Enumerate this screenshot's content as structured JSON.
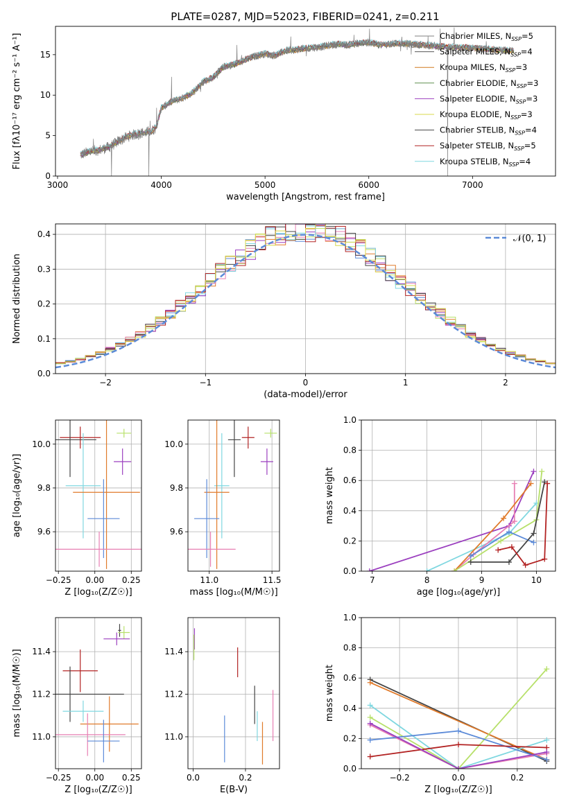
{
  "figure": {
    "title": "PLATE=0287, MJD=52023, FIBERID=0241, z=0.211"
  },
  "colors": {
    "chabrier_miles": "#7f7f7f",
    "salpeter_miles": "#555555",
    "kroupa_miles": "#d0781f",
    "chabrier_elodie": "#5f8f4f",
    "salpeter_elodie": "#9b3fbf",
    "kroupa_elodie": "#d8d84a",
    "chabrier_stelib": "#444444",
    "salpeter_stelib": "#b22222",
    "kroupa_stelib": "#7fd7e0",
    "gaussian": "#5b8ad8",
    "pink": "#e77fb3",
    "blue": "#5b8ad8",
    "orange": "#e07a2a",
    "lime": "#b7e06a"
  },
  "chart_data": [
    {
      "id": "spectrum",
      "type": "line",
      "title": "PLATE=0287, MJD=52023, FIBERID=0241, z=0.211",
      "xlabel": "wavelength [Angstrom, rest frame]",
      "ylabel": "Flux [fλ10⁻¹⁷ erg cm⁻² s⁻¹ A⁻¹]",
      "xlim": [
        2980,
        7800
      ],
      "ylim": [
        0,
        18.5
      ],
      "xticks": [
        3000,
        4000,
        5000,
        6000,
        7000
      ],
      "yticks": [
        0,
        5,
        10,
        15
      ],
      "legend": {
        "placement": "right",
        "entries": [
          "Chabrier MILES, N_SSP=5",
          "Salpeter MILES, N_SSP=4",
          "Kroupa MILES, N_SSP=3",
          "Chabrier ELODIE, N_SSP=3",
          "Salpeter ELODIE, N_SSP=3",
          "Kroupa ELODIE, N_SSP=3",
          "Chabrier STELIB, N_SSP=4",
          "Salpeter STELIB, N_SSP=5",
          "Kroupa STELIB, N_SSP=4"
        ],
        "color_keys": [
          "chabrier_miles",
          "salpeter_miles",
          "kroupa_miles",
          "chabrier_elodie",
          "salpeter_elodie",
          "kroupa_elodie",
          "chabrier_stelib",
          "salpeter_stelib",
          "kroupa_stelib"
        ]
      },
      "continuum": [
        [
          3220,
          2.6
        ],
        [
          3300,
          3.0
        ],
        [
          3400,
          3.2
        ],
        [
          3500,
          3.6
        ],
        [
          3600,
          4.4
        ],
        [
          3700,
          5.0
        ],
        [
          3800,
          5.3
        ],
        [
          3900,
          5.5
        ],
        [
          3950,
          6.0
        ],
        [
          4000,
          8.4
        ],
        [
          4100,
          9.2
        ],
        [
          4200,
          9.6
        ],
        [
          4300,
          10.3
        ],
        [
          4400,
          11.6
        ],
        [
          4500,
          12.2
        ],
        [
          4600,
          13.5
        ],
        [
          4700,
          13.8
        ],
        [
          4800,
          14.3
        ],
        [
          4900,
          14.8
        ],
        [
          5000,
          15.1
        ],
        [
          5100,
          14.9
        ],
        [
          5200,
          15.5
        ],
        [
          5300,
          15.6
        ],
        [
          5400,
          15.8
        ],
        [
          5500,
          15.9
        ],
        [
          5600,
          16.1
        ],
        [
          5700,
          16.3
        ],
        [
          5800,
          16.2
        ],
        [
          5900,
          16.4
        ],
        [
          6000,
          16.5
        ],
        [
          6100,
          16.2
        ],
        [
          6200,
          16.3
        ],
        [
          6300,
          16.4
        ],
        [
          6400,
          16.3
        ],
        [
          6500,
          16.2
        ],
        [
          6600,
          16.1
        ],
        [
          6700,
          16.0
        ],
        [
          6800,
          15.9
        ],
        [
          6900,
          15.9
        ],
        [
          7000,
          15.8
        ],
        [
          7100,
          15.7
        ],
        [
          7200,
          15.6
        ],
        [
          7300,
          15.5
        ],
        [
          7400,
          15.5
        ]
      ],
      "line_drops": [
        [
          3520,
          0
        ],
        [
          3880,
          0
        ],
        [
          6760,
          0
        ],
        [
          7410,
          0
        ]
      ]
    },
    {
      "id": "residuals",
      "type": "histogram",
      "xlabel": "(data-model)/error",
      "ylabel": "Normed distribution",
      "xlim": [
        -2.5,
        2.5
      ],
      "ylim": [
        0,
        0.43
      ],
      "xticks": [
        -2,
        -1,
        0,
        1,
        2
      ],
      "yticks": [
        0.0,
        0.1,
        0.2,
        0.3,
        0.4
      ],
      "legend": {
        "placement": "top-right",
        "entries": [
          "𝒩(0, 1)"
        ]
      },
      "bin_width": 0.1,
      "n_series": 9
    },
    {
      "id": "age_vs_Z",
      "type": "errorbar",
      "xlabel": "Z [log₁₀(Z/Z☉)]",
      "ylabel": "age  [log₁₀(age/yr)]",
      "xlim": [
        -0.27,
        0.32
      ],
      "ylim": [
        9.42,
        10.11
      ],
      "xticks": [
        -0.25,
        0.0,
        0.25
      ],
      "yticks": [
        9.6,
        9.8,
        10.0
      ],
      "points": [
        {
          "color": "salpeter_stelib",
          "x": -0.1,
          "xerr": 0.14,
          "y": 10.03,
          "yerr": 0.05
        },
        {
          "color": "chabrier_stelib",
          "x": -0.17,
          "xerr": 0.18,
          "y": 10.02,
          "yerr": 0.17
        },
        {
          "color": "lime",
          "x": 0.2,
          "xerr": 0.05,
          "y": 10.05,
          "yerr": 0.02
        },
        {
          "color": "salpeter_elodie",
          "x": 0.19,
          "xerr": 0.06,
          "y": 9.92,
          "yerr": 0.06
        },
        {
          "color": "kroupa_stelib",
          "x": -0.08,
          "xerr": 0.12,
          "y": 9.81,
          "yerr": 0.24
        },
        {
          "color": "orange",
          "x": 0.08,
          "xerr": 0.23,
          "y": 9.78,
          "yerr": 0.35
        },
        {
          "color": "blue",
          "x": 0.06,
          "xerr": 0.11,
          "y": 9.66,
          "yerr": 0.18
        },
        {
          "color": "pink",
          "x": 0.03,
          "xerr": 0.3,
          "y": 9.52,
          "yerr": 0.08
        }
      ]
    },
    {
      "id": "age_vs_mass",
      "type": "errorbar",
      "xlabel": "mass [log₁₀(M/M☉)]",
      "ylabel": "",
      "xlim": [
        10.83,
        11.56
      ],
      "ylim": [
        9.42,
        10.11
      ],
      "xticks": [
        11.0,
        11.5
      ],
      "yticks": [
        9.6,
        9.8,
        10.0
      ],
      "points": [
        {
          "color": "salpeter_stelib",
          "x": 11.31,
          "xerr": 0.05,
          "y": 10.03,
          "yerr": 0.05
        },
        {
          "color": "chabrier_stelib",
          "x": 11.2,
          "xerr": 0.05,
          "y": 10.02,
          "yerr": 0.17
        },
        {
          "color": "lime",
          "x": 11.49,
          "xerr": 0.05,
          "y": 10.05,
          "yerr": 0.02
        },
        {
          "color": "salpeter_elodie",
          "x": 11.46,
          "xerr": 0.05,
          "y": 9.92,
          "yerr": 0.06
        },
        {
          "color": "kroupa_stelib",
          "x": 11.1,
          "xerr": 0.06,
          "y": 9.81,
          "yerr": 0.24
        },
        {
          "color": "orange",
          "x": 11.06,
          "xerr": 0.1,
          "y": 9.78,
          "yerr": 0.35
        },
        {
          "color": "blue",
          "x": 10.98,
          "xerr": 0.1,
          "y": 9.66,
          "yerr": 0.18
        },
        {
          "color": "pink",
          "x": 11.01,
          "xerr": 0.2,
          "y": 9.52,
          "yerr": 0.08
        }
      ]
    },
    {
      "id": "weight_vs_age",
      "type": "line",
      "xlabel": "age  [log₁₀(age/yr)]",
      "ylabel": "mass weight",
      "xlim": [
        6.8,
        10.35
      ],
      "ylim": [
        0,
        1.0
      ],
      "xticks": [
        7,
        8,
        9,
        10
      ],
      "yticks": [
        0.0,
        0.2,
        0.4,
        0.6,
        0.8,
        1.0
      ],
      "series": [
        {
          "color": "salpeter_elodie",
          "points": [
            [
              6.95,
              0.0
            ],
            [
              9.5,
              0.3
            ],
            [
              9.95,
              0.66
            ]
          ]
        },
        {
          "color": "kroupa_stelib",
          "points": [
            [
              8.0,
              0.0
            ],
            [
              9.5,
              0.25
            ],
            [
              10.0,
              0.45
            ]
          ]
        },
        {
          "color": "pink",
          "points": [
            [
              8.5,
              0.0
            ],
            [
              8.85,
              0.11
            ],
            [
              9.6,
              0.33
            ],
            [
              9.6,
              0.58
            ]
          ]
        },
        {
          "color": "orange",
          "points": [
            [
              8.5,
              0.0
            ],
            [
              9.4,
              0.35
            ],
            [
              9.9,
              0.58
            ]
          ]
        },
        {
          "color": "lime",
          "points": [
            [
              8.5,
              0.0
            ],
            [
              9.35,
              0.2
            ],
            [
              10.0,
              0.34
            ],
            [
              10.1,
              0.66
            ]
          ]
        },
        {
          "color": "blue",
          "points": [
            [
              8.8,
              0.1
            ],
            [
              9.5,
              0.26
            ],
            [
              9.95,
              0.19
            ]
          ]
        },
        {
          "color": "chabrier_stelib",
          "points": [
            [
              8.8,
              0.06
            ],
            [
              9.5,
              0.06
            ],
            [
              9.95,
              0.25
            ],
            [
              10.15,
              0.59
            ]
          ]
        },
        {
          "color": "salpeter_stelib",
          "points": [
            [
              9.3,
              0.14
            ],
            [
              9.55,
              0.16
            ],
            [
              9.8,
              0.04
            ],
            [
              10.15,
              0.08
            ],
            [
              10.2,
              0.58
            ]
          ]
        }
      ]
    },
    {
      "id": "mass_vs_Z",
      "type": "errorbar",
      "xlabel": "Z [log₁₀(Z/Z☉)]",
      "ylabel": "mass [log₁₀(M/M☉)]",
      "xlim": [
        -0.27,
        0.32
      ],
      "ylim": [
        10.85,
        11.56
      ],
      "xticks": [
        -0.25,
        0.0,
        0.25
      ],
      "yticks": [
        11.0,
        11.2,
        11.4
      ],
      "points": [
        {
          "color": "chabrier_stelib",
          "x": 0.17,
          "xerr": 0.01,
          "y": 11.5,
          "yerr": 0.03
        },
        {
          "color": "lime",
          "x": 0.2,
          "xerr": 0.04,
          "y": 11.49,
          "yerr": 0.03
        },
        {
          "color": "salpeter_elodie",
          "x": 0.15,
          "xerr": 0.09,
          "y": 11.46,
          "yerr": 0.03
        },
        {
          "color": "salpeter_stelib",
          "x": -0.1,
          "xerr": 0.12,
          "y": 11.31,
          "yerr": 0.1
        },
        {
          "color": "chabrier_stelib",
          "x": -0.17,
          "xerr": 0.37,
          "y": 11.2,
          "yerr": 0.13
        },
        {
          "color": "kroupa_stelib",
          "x": -0.08,
          "xerr": 0.14,
          "y": 11.12,
          "yerr": 0.05
        },
        {
          "color": "orange",
          "x": 0.1,
          "xerr": 0.2,
          "y": 11.06,
          "yerr": 0.13
        },
        {
          "color": "pink",
          "x": -0.05,
          "xerr": 0.26,
          "y": 11.01,
          "yerr": 0.1
        },
        {
          "color": "blue",
          "x": 0.06,
          "xerr": 0.11,
          "y": 10.98,
          "yerr": 0.1
        }
      ]
    },
    {
      "id": "mass_vs_ebv",
      "type": "errorbar",
      "xlabel": "E(B-V)",
      "ylabel": "",
      "xlim": [
        -0.02,
        0.33
      ],
      "ylim": [
        10.85,
        11.56
      ],
      "xticks": [
        0.0,
        0.2
      ],
      "yticks": [
        11.0,
        11.2,
        11.4
      ],
      "points": [
        {
          "color": "salpeter_elodie",
          "x": 0.005,
          "y": 11.46,
          "yerr": 0.05
        },
        {
          "color": "lime",
          "x": 0.003,
          "y": 11.42,
          "yerr": 0.06
        },
        {
          "color": "salpeter_stelib",
          "x": 0.17,
          "y": 11.35,
          "yerr": 0.07
        },
        {
          "color": "chabrier_stelib",
          "x": 0.235,
          "y": 11.15,
          "yerr": 0.09
        },
        {
          "color": "kroupa_stelib",
          "x": 0.245,
          "y": 11.05,
          "yerr": 0.07
        },
        {
          "color": "blue",
          "x": 0.12,
          "y": 10.99,
          "yerr": 0.11
        },
        {
          "color": "orange",
          "x": 0.265,
          "y": 10.97,
          "yerr": 0.1
        },
        {
          "color": "pink",
          "x": 0.305,
          "y": 11.1,
          "yerr": 0.12
        }
      ]
    },
    {
      "id": "weight_vs_Z",
      "type": "line",
      "xlabel": "Z [log₁₀(Z/Z☉)]",
      "ylabel": "mass weight",
      "xlim": [
        -0.33,
        0.33
      ],
      "ylim": [
        0,
        1.0
      ],
      "xticks": [
        -0.2,
        0.0,
        0.2
      ],
      "yticks": [
        0.0,
        0.2,
        0.4,
        0.6,
        0.8,
        1.0
      ],
      "series": [
        {
          "color": "chabrier_stelib",
          "points": [
            [
              -0.3,
              0.59
            ],
            [
              0.3,
              0.05
            ]
          ]
        },
        {
          "color": "orange",
          "points": [
            [
              -0.3,
              0.57
            ],
            [
              0.3,
              0.06
            ]
          ]
        },
        {
          "color": "kroupa_stelib",
          "points": [
            [
              -0.3,
              0.42
            ],
            [
              0.0,
              0.0
            ],
            [
              0.3,
              0.19
            ]
          ]
        },
        {
          "color": "lime",
          "points": [
            [
              -0.3,
              0.34
            ],
            [
              0.0,
              0.0
            ],
            [
              0.3,
              0.66
            ]
          ]
        },
        {
          "color": "pink",
          "points": [
            [
              -0.3,
              0.29
            ],
            [
              0.0,
              0.0
            ],
            [
              0.3,
              0.1
            ]
          ]
        },
        {
          "color": "blue",
          "points": [
            [
              -0.3,
              0.19
            ],
            [
              0.0,
              0.25
            ],
            [
              0.3,
              0.06
            ]
          ]
        },
        {
          "color": "salpeter_stelib",
          "points": [
            [
              -0.3,
              0.08
            ],
            [
              0.0,
              0.16
            ],
            [
              0.3,
              0.14
            ]
          ]
        },
        {
          "color": "salpeter_elodie",
          "points": [
            [
              -0.3,
              0.3
            ],
            [
              0.0,
              0.0
            ],
            [
              0.3,
              0.11
            ]
          ]
        }
      ]
    }
  ]
}
